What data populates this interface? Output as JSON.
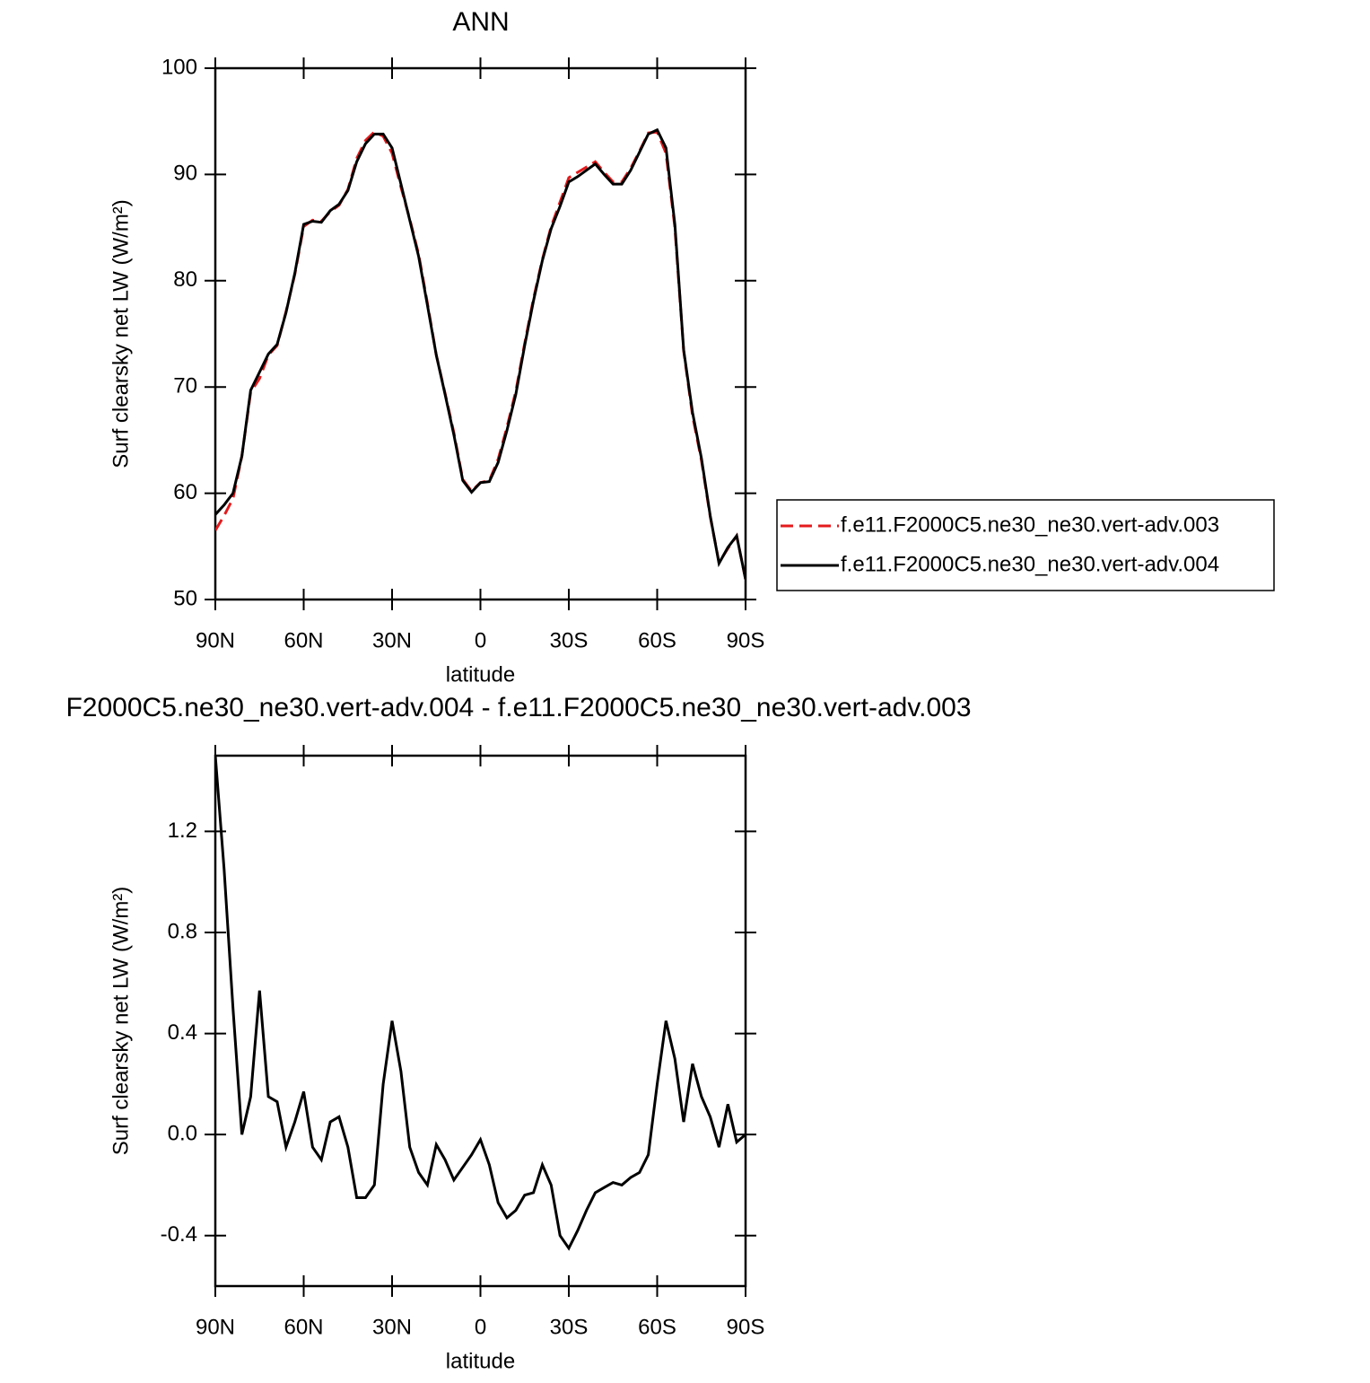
{
  "chart_data": [
    {
      "type": "line",
      "title": "ANN",
      "xlabel": "latitude",
      "ylabel": "Surf clearsky net LW (W/m²)",
      "x": [
        90,
        87,
        84,
        81,
        78,
        75,
        72,
        69,
        66,
        63,
        60,
        57,
        54,
        51,
        48,
        45,
        42,
        39,
        36,
        33,
        30,
        27,
        24,
        21,
        18,
        15,
        12,
        9,
        6,
        3,
        0,
        -3,
        -6,
        -9,
        -12,
        -15,
        -18,
        -21,
        -24,
        -27,
        -30,
        -33,
        -36,
        -39,
        -42,
        -45,
        -48,
        -51,
        -54,
        -57,
        -60,
        -63,
        -66,
        -69,
        -72,
        -75,
        -78,
        -81,
        -84,
        -87,
        -90
      ],
      "series": [
        {
          "name": "f.e11.F2000C5.ne30_ne30.vert-adv.003",
          "color": "#e41a1c",
          "dashed": true,
          "values": [
            56.5,
            57.9,
            59.5,
            63.5,
            69.5,
            70.8,
            73.0,
            73.9,
            77.1,
            80.6,
            85.1,
            85.7,
            85.6,
            86.5,
            87.1,
            88.6,
            91.5,
            93.2,
            94.0,
            93.6,
            92.0,
            88.8,
            85.8,
            82.5,
            77.9,
            73.0,
            69.4,
            65.7,
            61.3,
            60.2,
            61.0,
            61.2,
            63.2,
            66.2,
            69.6,
            74.1,
            78.3,
            82.0,
            85.1,
            87.4,
            89.7,
            90.2,
            90.7,
            91.2,
            90.2,
            89.3,
            89.3,
            90.6,
            92.2,
            93.9,
            94.0,
            92.0,
            85.0,
            73.4,
            67.3,
            63.1,
            57.8,
            53.5,
            54.8,
            56.0,
            51.9
          ]
        },
        {
          "name": "f.e11.F2000C5.ne30_ne30.vert-adv.004",
          "color": "#000000",
          "dashed": false,
          "values": [
            58.0,
            58.9,
            60.0,
            63.5,
            69.7,
            71.4,
            73.1,
            74.0,
            77.0,
            80.7,
            85.3,
            85.6,
            85.5,
            86.6,
            87.2,
            88.5,
            91.2,
            92.9,
            93.8,
            93.8,
            92.5,
            89.1,
            85.7,
            82.3,
            77.7,
            73.0,
            69.3,
            65.5,
            61.2,
            60.1,
            61.0,
            61.1,
            62.9,
            65.9,
            69.3,
            73.9,
            78.1,
            81.9,
            84.9,
            87.0,
            89.3,
            89.8,
            90.4,
            91.0,
            90.0,
            89.1,
            89.1,
            90.4,
            92.1,
            93.8,
            94.2,
            92.5,
            85.3,
            73.5,
            67.6,
            63.3,
            57.9,
            53.4,
            54.9,
            56.0,
            51.9
          ]
        }
      ],
      "xlim": [
        90,
        -90
      ],
      "xticks": [
        {
          "value": 90,
          "label": "90N"
        },
        {
          "value": 60,
          "label": "60N"
        },
        {
          "value": 30,
          "label": "30N"
        },
        0,
        {
          "value": -30,
          "label": "30S"
        },
        {
          "value": -60,
          "label": "60S"
        },
        {
          "value": -90,
          "label": "90S"
        }
      ],
      "ylim": [
        50,
        100
      ],
      "yticks": [
        50,
        60,
        70,
        80,
        90,
        100
      ],
      "legend": "right"
    },
    {
      "type": "line",
      "title": "F2000C5.ne30_ne30.vert-adv.004 - f.e11.F2000C5.ne30_ne30.vert-adv.003",
      "xlabel": "latitude",
      "ylabel": "Surf clearsky net LW (W/m²)",
      "x": [
        90,
        87,
        84,
        81,
        78,
        75,
        72,
        69,
        66,
        63,
        60,
        57,
        54,
        51,
        48,
        45,
        42,
        39,
        36,
        33,
        30,
        27,
        24,
        21,
        18,
        15,
        12,
        9,
        6,
        3,
        0,
        -3,
        -6,
        -9,
        -12,
        -15,
        -18,
        -21,
        -24,
        -27,
        -30,
        -33,
        -36,
        -39,
        -42,
        -45,
        -48,
        -51,
        -54,
        -57,
        -60,
        -63,
        -66,
        -69,
        -72,
        -75,
        -78,
        -81,
        -84,
        -87,
        -90
      ],
      "color": "#000000",
      "values": [
        1.5,
        1.05,
        0.5,
        0.0,
        0.15,
        0.57,
        0.15,
        0.13,
        -0.05,
        0.05,
        0.17,
        -0.05,
        -0.1,
        0.05,
        0.07,
        -0.05,
        -0.25,
        -0.25,
        -0.2,
        0.2,
        0.45,
        0.25,
        -0.05,
        -0.15,
        -0.2,
        -0.04,
        -0.1,
        -0.18,
        -0.13,
        -0.08,
        -0.02,
        -0.12,
        -0.27,
        -0.33,
        -0.3,
        -0.24,
        -0.23,
        -0.12,
        -0.2,
        -0.4,
        -0.45,
        -0.38,
        -0.3,
        -0.23,
        -0.21,
        -0.19,
        -0.2,
        -0.17,
        -0.15,
        -0.08,
        0.2,
        0.45,
        0.3,
        0.05,
        0.28,
        0.15,
        0.07,
        -0.05,
        0.12,
        -0.03,
        0.0
      ],
      "xlim": [
        90,
        -90
      ],
      "xticks": [
        {
          "value": 90,
          "label": "90N"
        },
        {
          "value": 60,
          "label": "60N"
        },
        {
          "value": 30,
          "label": "30N"
        },
        0,
        {
          "value": -30,
          "label": "30S"
        },
        {
          "value": -60,
          "label": "60S"
        },
        {
          "value": -90,
          "label": "90S"
        }
      ],
      "ylim": [
        -0.6,
        1.5
      ],
      "yticks": [
        -0.4,
        {
          "value": 0,
          "label": "0.0"
        },
        0.4,
        0.8,
        1.2
      ]
    }
  ]
}
